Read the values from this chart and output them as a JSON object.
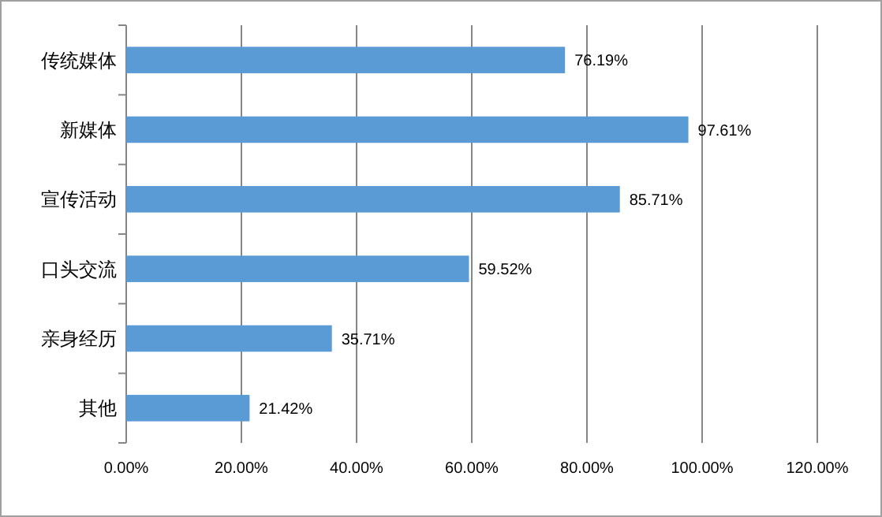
{
  "chart_data": {
    "type": "bar",
    "orientation": "horizontal",
    "categories": [
      "传统媒体",
      "新媒体",
      "宣传活动",
      "口头交流",
      "亲身经历",
      "其他"
    ],
    "values": [
      76.19,
      97.61,
      85.71,
      59.52,
      35.71,
      21.42
    ],
    "value_labels": [
      "76.19%",
      "97.61%",
      "85.71%",
      "59.52%",
      "35.71%",
      "21.42%"
    ],
    "color": "#5b9bd5",
    "xlim": [
      0,
      120
    ],
    "xticks": [
      {
        "value": 0,
        "label": "0.00%"
      },
      {
        "value": 20,
        "label": "20.00%"
      },
      {
        "value": 40,
        "label": "40.00%"
      },
      {
        "value": 60,
        "label": "60.00%"
      },
      {
        "value": 80,
        "label": "80.00%"
      },
      {
        "value": 100,
        "label": "100.00%"
      },
      {
        "value": 120,
        "label": "120.00%"
      }
    ],
    "grid": "x"
  }
}
